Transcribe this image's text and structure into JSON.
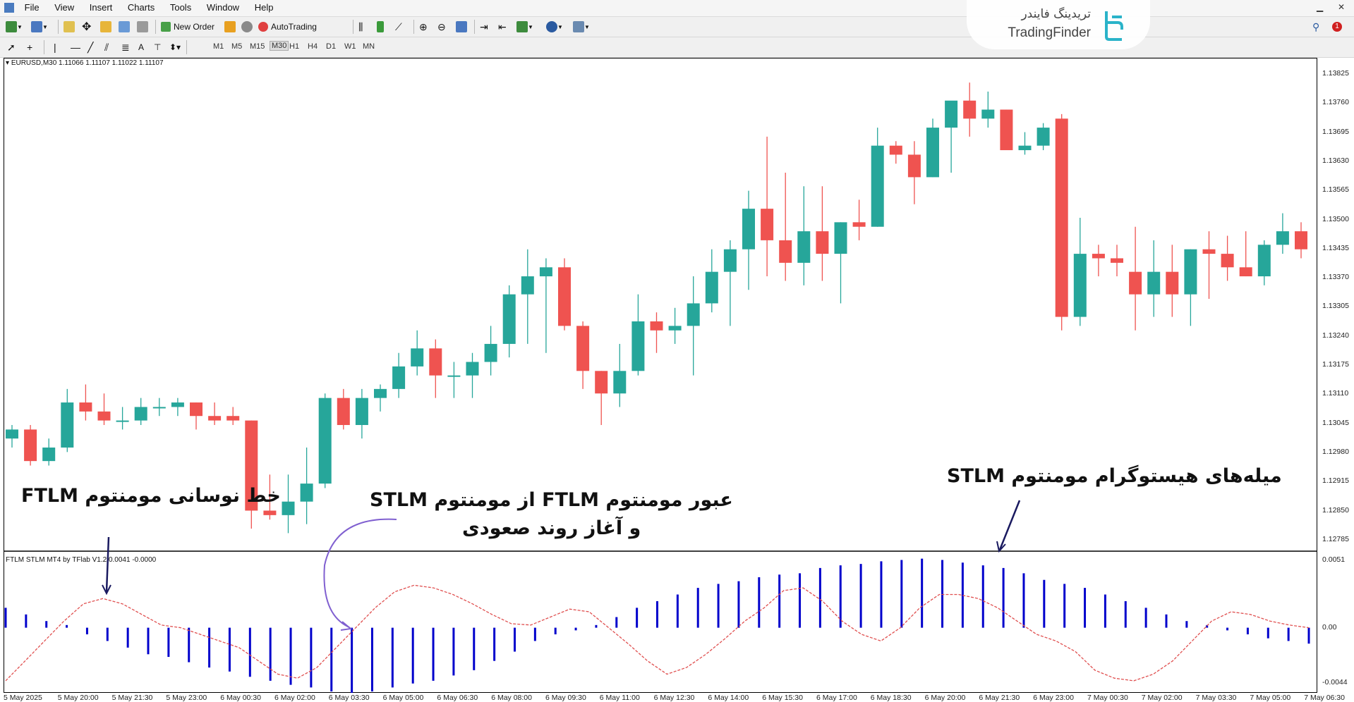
{
  "menu": [
    "File",
    "View",
    "Insert",
    "Charts",
    "Tools",
    "Window",
    "Help"
  ],
  "toolbar": {
    "new_order": "New Order",
    "autotrading": "AutoTrading",
    "timeframes": [
      "M1",
      "M5",
      "M15",
      "M30",
      "H1",
      "H4",
      "D1",
      "W1",
      "MN"
    ],
    "active_timeframe": "M30"
  },
  "logo": {
    "fa": "تریدینگ فایندر",
    "en": "TradingFinder"
  },
  "notification_count": "1",
  "chart": {
    "symbol_line": "EURUSD,M30  1.11066 1.11107 1.11022 1.11107",
    "indicator_line": "FTLM STLM MT4 by TFlab V1.2 0.0041 -0.0000",
    "price_labels": [
      "1.13825",
      "1.13760",
      "1.13695",
      "1.13630",
      "1.13565",
      "1.13500",
      "1.13435",
      "1.13370",
      "1.13305",
      "1.13240",
      "1.13175",
      "1.13110",
      "1.13045",
      "1.12980",
      "1.12915",
      "1.12850",
      "1.12785"
    ],
    "indicator_labels": [
      "0.0051",
      "0.00",
      "-0.0044"
    ],
    "time_labels": [
      "5 May 2025",
      "5 May 20:00",
      "5 May 21:30",
      "5 May 23:00",
      "6 May 00:30",
      "6 May 02:00",
      "6 May 03:30",
      "6 May 05:00",
      "6 May 06:30",
      "6 May 08:00",
      "6 May 09:30",
      "6 May 11:00",
      "6 May 12:30",
      "6 May 14:00",
      "6 May 15:30",
      "6 May 17:00",
      "6 May 18:30",
      "6 May 20:00",
      "6 May 21:30",
      "6 May 23:00",
      "7 May 00:30",
      "7 May 02:00",
      "7 May 03:30",
      "7 May 05:00",
      "7 May 06:30"
    ],
    "colors": {
      "bull": "#26a69a",
      "bear": "#ef5350",
      "histogram": "#0000cc",
      "ftlm": "#e05050"
    }
  },
  "annotations": {
    "ftlm_line": "خط نوسانی مومنتوم FTLM",
    "crossover_line1": "عبور مومنتوم FTLM از مومنتوم STLM",
    "crossover_line2": "و آغاز روند صعودی",
    "histogram": "میله‌های هیستوگرام مومنتوم STLM"
  },
  "candles": [
    [
      1.1301,
      1.1304,
      1.1299,
      1.1303
    ],
    [
      1.1303,
      1.1304,
      1.1295,
      1.1296
    ],
    [
      1.1296,
      1.1301,
      1.1295,
      1.1299
    ],
    [
      1.1299,
      1.1312,
      1.1298,
      1.1309
    ],
    [
      1.1309,
      1.1313,
      1.1305,
      1.1307
    ],
    [
      1.1307,
      1.1311,
      1.1304,
      1.1305
    ],
    [
      1.1305,
      1.1308,
      1.1303,
      1.1305
    ],
    [
      1.1305,
      1.131,
      1.1304,
      1.1308
    ],
    [
      1.1308,
      1.131,
      1.1306,
      1.1308
    ],
    [
      1.1308,
      1.131,
      1.1306,
      1.1309
    ],
    [
      1.1309,
      1.1309,
      1.1303,
      1.1306
    ],
    [
      1.1306,
      1.1309,
      1.1304,
      1.1305
    ],
    [
      1.1306,
      1.1308,
      1.1304,
      1.1305
    ],
    [
      1.1305,
      1.1305,
      1.1281,
      1.1285
    ],
    [
      1.1285,
      1.1293,
      1.1283,
      1.1284
    ],
    [
      1.1284,
      1.1293,
      1.128,
      1.1287
    ],
    [
      1.1287,
      1.1299,
      1.1282,
      1.1291
    ],
    [
      1.1291,
      1.1311,
      1.129,
      1.131
    ],
    [
      1.131,
      1.1312,
      1.1303,
      1.1304
    ],
    [
      1.1304,
      1.1312,
      1.1301,
      1.131
    ],
    [
      1.131,
      1.1313,
      1.1307,
      1.1312
    ],
    [
      1.1312,
      1.132,
      1.131,
      1.1317
    ],
    [
      1.1317,
      1.1325,
      1.1315,
      1.1321
    ],
    [
      1.1321,
      1.1323,
      1.131,
      1.1315
    ],
    [
      1.1315,
      1.1318,
      1.131,
      1.1315
    ],
    [
      1.1315,
      1.132,
      1.131,
      1.1318
    ],
    [
      1.1318,
      1.1326,
      1.1315,
      1.1322
    ],
    [
      1.1322,
      1.1335,
      1.1319,
      1.1333
    ],
    [
      1.1333,
      1.1343,
      1.1322,
      1.1337
    ],
    [
      1.1337,
      1.1341,
      1.132,
      1.1339
    ],
    [
      1.1339,
      1.1341,
      1.1325,
      1.1326
    ],
    [
      1.1326,
      1.1327,
      1.1312,
      1.1316
    ],
    [
      1.1316,
      1.1316,
      1.1304,
      1.1311
    ],
    [
      1.1311,
      1.1322,
      1.1308,
      1.1316
    ],
    [
      1.1316,
      1.1333,
      1.1315,
      1.1327
    ],
    [
      1.1327,
      1.1329,
      1.132,
      1.1325
    ],
    [
      1.1325,
      1.133,
      1.1322,
      1.1326
    ],
    [
      1.1326,
      1.1337,
      1.1315,
      1.1331
    ],
    [
      1.1331,
      1.1343,
      1.1329,
      1.1338
    ],
    [
      1.1338,
      1.1345,
      1.1326,
      1.1343
    ],
    [
      1.1343,
      1.1356,
      1.1334,
      1.1352
    ],
    [
      1.1352,
      1.1368,
      1.1337,
      1.1345
    ],
    [
      1.1345,
      1.136,
      1.1336,
      1.134
    ],
    [
      1.134,
      1.1357,
      1.1335,
      1.1347
    ],
    [
      1.1347,
      1.1357,
      1.1336,
      1.1342
    ],
    [
      1.1342,
      1.1349,
      1.1331,
      1.1349
    ],
    [
      1.1349,
      1.1354,
      1.1345,
      1.1348
    ],
    [
      1.1348,
      1.137,
      1.1348,
      1.1366
    ],
    [
      1.1366,
      1.1367,
      1.1362,
      1.1364
    ],
    [
      1.1364,
      1.1367,
      1.1353,
      1.1359
    ],
    [
      1.1359,
      1.1372,
      1.1359,
      1.137
    ],
    [
      1.137,
      1.1375,
      1.136,
      1.1376
    ],
    [
      1.1376,
      1.138,
      1.1368,
      1.1372
    ],
    [
      1.1372,
      1.1378,
      1.137,
      1.1374
    ],
    [
      1.1374,
      1.1374,
      1.1366,
      1.1365
    ],
    [
      1.1365,
      1.1369,
      1.1364,
      1.1366
    ],
    [
      1.1366,
      1.1371,
      1.1365,
      1.137
    ],
    [
      1.1372,
      1.1373,
      1.1325,
      1.1328
    ],
    [
      1.1328,
      1.135,
      1.1326,
      1.1342
    ],
    [
      1.1342,
      1.1344,
      1.1337,
      1.1341
    ],
    [
      1.1341,
      1.1344,
      1.1337,
      1.134
    ],
    [
      1.1338,
      1.1348,
      1.1325,
      1.1333
    ],
    [
      1.1333,
      1.1345,
      1.1328,
      1.1338
    ],
    [
      1.1338,
      1.1344,
      1.1328,
      1.1333
    ],
    [
      1.1333,
      1.1343,
      1.1326,
      1.1343
    ],
    [
      1.1343,
      1.1347,
      1.1332,
      1.1342
    ],
    [
      1.1342,
      1.1346,
      1.1336,
      1.1339
    ],
    [
      1.1339,
      1.1347,
      1.1337,
      1.1337
    ],
    [
      1.1337,
      1.1345,
      1.1335,
      1.1344
    ],
    [
      1.1344,
      1.1351,
      1.1342,
      1.1347
    ],
    [
      1.1347,
      1.1349,
      1.1341,
      1.1343
    ]
  ],
  "histogram": [
    0.0015,
    0.001,
    0.0005,
    0.0002,
    -0.0005,
    -0.001,
    -0.0015,
    -0.002,
    -0.0022,
    -0.0026,
    -0.003,
    -0.0033,
    -0.0037,
    -0.004,
    -0.0043,
    -0.0045,
    -0.0048,
    -0.005,
    -0.0048,
    -0.0045,
    -0.0042,
    -0.004,
    -0.0036,
    -0.0032,
    -0.0025,
    -0.0018,
    -0.001,
    -0.0005,
    -0.0002,
    0.0002,
    0.0008,
    0.0015,
    0.002,
    0.0025,
    0.003,
    0.0033,
    0.0035,
    0.0038,
    0.004,
    0.0041,
    0.0045,
    0.0047,
    0.0048,
    0.005,
    0.0051,
    0.0052,
    0.0051,
    0.0049,
    0.0047,
    0.0045,
    0.0041,
    0.0036,
    0.0033,
    0.003,
    0.0025,
    0.002,
    0.0015,
    0.001,
    0.0005,
    0.0002,
    -0.0002,
    -0.0005,
    -0.0008,
    -0.001,
    -0.0012
  ],
  "ftlm": [
    -0.004,
    -0.0025,
    -0.001,
    0.0005,
    0.0018,
    0.0022,
    0.0018,
    0.001,
    0.0002,
    0.0,
    -0.0005,
    -0.001,
    -0.0015,
    -0.0025,
    -0.0035,
    -0.0038,
    -0.003,
    -0.0015,
    0.0,
    0.0015,
    0.0027,
    0.0032,
    0.003,
    0.0025,
    0.0018,
    0.001,
    0.0003,
    0.0002,
    0.0008,
    0.0014,
    0.0012,
    0.0,
    -0.0012,
    -0.0025,
    -0.0035,
    -0.003,
    -0.002,
    -0.0008,
    0.0005,
    0.0015,
    0.0028,
    0.003,
    0.002,
    0.0005,
    -0.0005,
    -0.001,
    0.0,
    0.0015,
    0.0025,
    0.0025,
    0.0022,
    0.0015,
    0.0005,
    -0.0005,
    -0.001,
    -0.0018,
    -0.0032,
    -0.0038,
    -0.004,
    -0.0035,
    -0.0025,
    -0.001,
    0.0005,
    0.0012,
    0.001,
    0.0005,
    0.0002,
    0.0
  ]
}
